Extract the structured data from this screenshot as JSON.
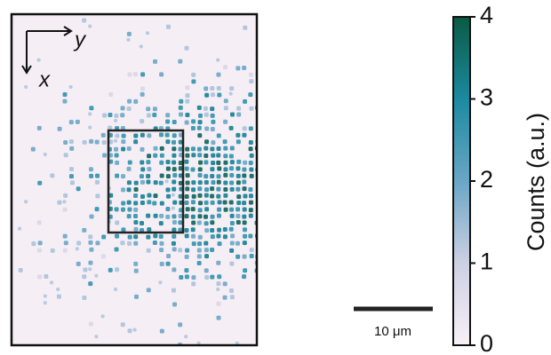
{
  "orientation": {
    "x": "x",
    "y": "y"
  },
  "scale_bar": {
    "label": "10 μm"
  },
  "colorbar": {
    "label": "Counts (a.u.)",
    "lim": [
      0,
      4
    ],
    "ticks": [
      0,
      1,
      2,
      3,
      4
    ]
  }
}
